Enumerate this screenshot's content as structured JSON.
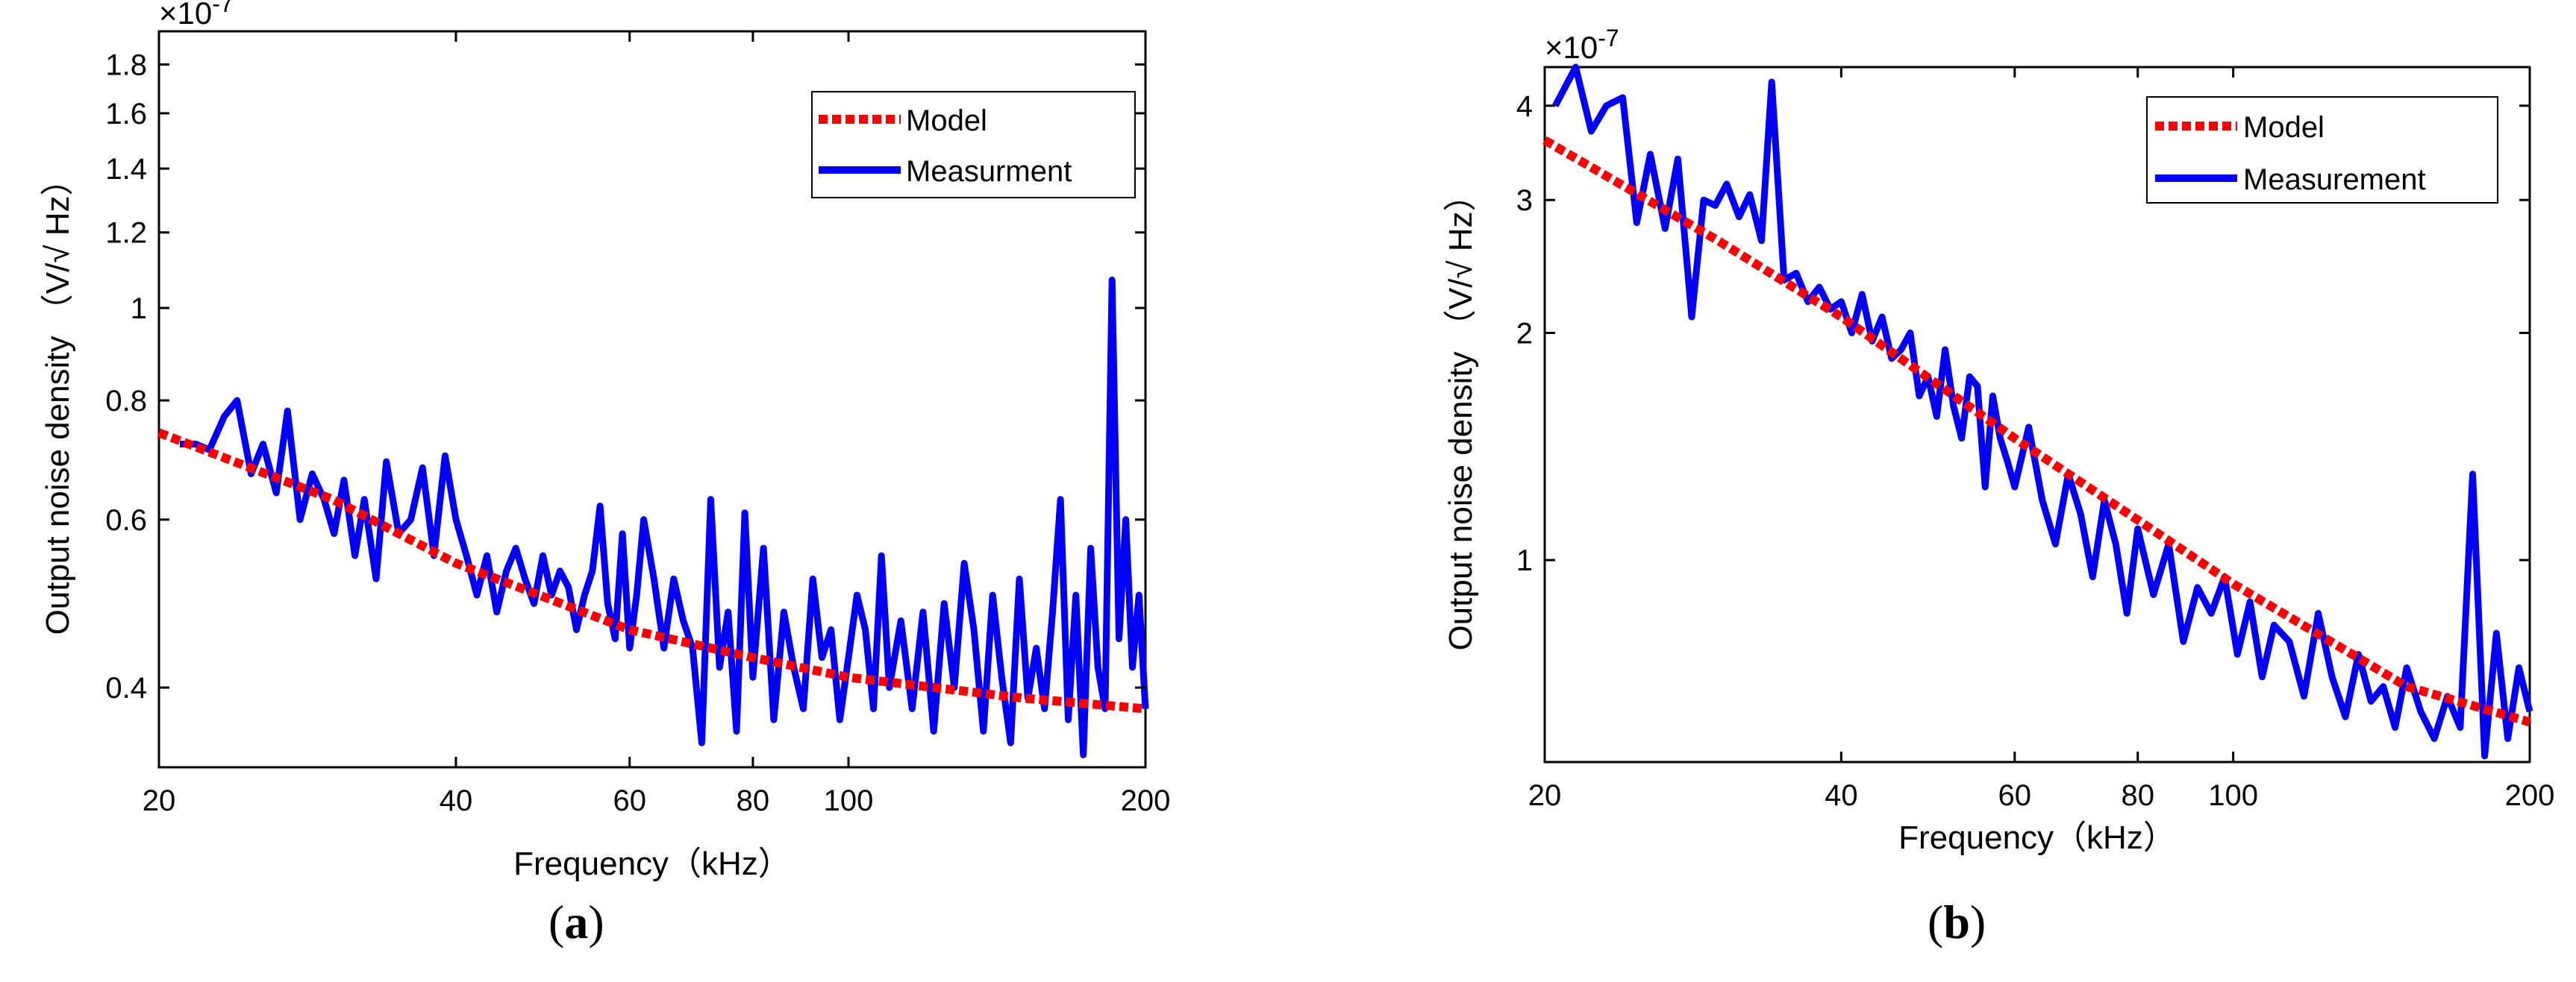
{
  "chart_data": [
    {
      "panel": "a",
      "type": "line",
      "xscale": "log",
      "yscale": "log",
      "xlim": [
        20,
        200
      ],
      "ylim": [
        3.3e-08,
        1.95e-07
      ],
      "xlabel": "Frequency（kHz）",
      "ylabel": "Output noise density （V/√ Hz）",
      "y_multiplier_label": "×10",
      "y_multiplier_exp": "-7",
      "xticks": [
        20,
        40,
        60,
        80,
        100,
        200
      ],
      "xtick_labels": [
        "20",
        "40",
        "60",
        "80",
        "100",
        "200"
      ],
      "yticks": [
        0.4,
        0.6,
        0.8,
        1,
        1.2,
        1.4,
        1.6,
        1.8
      ],
      "ytick_labels": [
        "0.4",
        "0.6",
        "0.8",
        "1",
        "1.2",
        "1.4",
        "1.6",
        "1.8"
      ],
      "legend_position": "top-right",
      "series": [
        {
          "name": "Model",
          "style": "dotted",
          "color": "#ff0000",
          "x": [
            20,
            30,
            40,
            60,
            80,
            100,
            150,
            200
          ],
          "y": [
            0.74,
            0.63,
            0.54,
            0.46,
            0.43,
            0.41,
            0.39,
            0.38
          ]
        },
        {
          "name": "Measurment",
          "style": "solid",
          "color": "#0000ff",
          "x": [
            21,
            21.8,
            22.5,
            23.3,
            24,
            24.8,
            25.5,
            26.3,
            27,
            27.8,
            28.6,
            29.4,
            30.1,
            30.8,
            31.6,
            32.3,
            33.2,
            34.0,
            35.0,
            36.0,
            37.0,
            38.0,
            39.0,
            40.0,
            41.0,
            42.0,
            43.0,
            44.0,
            45.0,
            46.0,
            47.0,
            48.0,
            49.0,
            50.0,
            51.0,
            52.0,
            53.0,
            54.0,
            55.0,
            56.0,
            57.0,
            58.0,
            59.0,
            60.0,
            61.0,
            62.0,
            63.5,
            65.0,
            66.5,
            68.0,
            69.5,
            71.0,
            72.5,
            74.0,
            75.5,
            77.0,
            78.5,
            80.0,
            82.0,
            84.0,
            86.0,
            88.0,
            90.0,
            92.0,
            94.0,
            96.0,
            98.0,
            100.0,
            102.0,
            104.0,
            106.0,
            108.0,
            110.0,
            113.0,
            116.0,
            119.0,
            122.0,
            125.0,
            128.0,
            131.0,
            134.0,
            137.0,
            140.0,
            143.0,
            146.0,
            149.0,
            152.0,
            155.0,
            158.0,
            161.0,
            164.0,
            167.0,
            170.0,
            173.0,
            176.0,
            179.0,
            182.0,
            185.0,
            188.0,
            191.0,
            194.0,
            197.0,
            200.0
          ],
          "y": [
            0.72,
            0.72,
            0.71,
            0.77,
            0.8,
            0.67,
            0.72,
            0.64,
            0.78,
            0.6,
            0.67,
            0.63,
            0.58,
            0.66,
            0.55,
            0.63,
            0.52,
            0.69,
            0.58,
            0.6,
            0.68,
            0.55,
            0.7,
            0.6,
            0.55,
            0.5,
            0.55,
            0.48,
            0.53,
            0.56,
            0.52,
            0.49,
            0.55,
            0.5,
            0.53,
            0.51,
            0.46,
            0.5,
            0.53,
            0.62,
            0.49,
            0.45,
            0.58,
            0.44,
            0.5,
            0.6,
            0.52,
            0.44,
            0.52,
            0.47,
            0.44,
            0.35,
            0.63,
            0.42,
            0.48,
            0.36,
            0.61,
            0.41,
            0.56,
            0.37,
            0.48,
            0.42,
            0.38,
            0.52,
            0.43,
            0.46,
            0.37,
            0.43,
            0.5,
            0.46,
            0.38,
            0.55,
            0.4,
            0.47,
            0.38,
            0.48,
            0.36,
            0.49,
            0.4,
            0.54,
            0.46,
            0.36,
            0.5,
            0.41,
            0.35,
            0.52,
            0.39,
            0.44,
            0.38,
            0.48,
            0.63,
            0.37,
            0.5,
            0.34,
            0.56,
            0.42,
            0.38,
            1.07,
            0.45,
            0.6,
            0.42,
            0.5,
            0.38
          ]
        }
      ]
    },
    {
      "panel": "b",
      "type": "line",
      "xscale": "log",
      "yscale": "log",
      "xlim": [
        20,
        200
      ],
      "ylim": [
        5.4e-08,
        4.5e-07
      ],
      "xlabel": "Frequency（kHz）",
      "ylabel": "Output noise density （V/√ Hz）",
      "y_multiplier_label": "×10",
      "y_multiplier_exp": "-7",
      "xticks": [
        20,
        40,
        60,
        80,
        100,
        200
      ],
      "xtick_labels": [
        "20",
        "40",
        "60",
        "80",
        "100",
        "200"
      ],
      "yticks": [
        1,
        2,
        3,
        4
      ],
      "ytick_labels": [
        "1",
        "2",
        "3",
        "4"
      ],
      "legend_position": "top-right",
      "series": [
        {
          "name": "Model",
          "style": "dotted",
          "color": "#ff0000",
          "x": [
            20,
            30,
            40,
            60,
            80,
            100,
            150,
            200
          ],
          "y": [
            3.6,
            2.65,
            2.1,
            1.45,
            1.13,
            0.93,
            0.68,
            0.61
          ]
        },
        {
          "name": "Measurement",
          "style": "solid",
          "color": "#0000ff",
          "x": [
            20.5,
            21.5,
            22.3,
            23.1,
            24.0,
            24.8,
            25.6,
            26.5,
            27.3,
            28.2,
            29.0,
            29.8,
            30.6,
            31.5,
            32.3,
            33.2,
            34.0,
            35.0,
            36.0,
            37.0,
            38.0,
            39.0,
            40.0,
            41.0,
            42.0,
            43.0,
            44.0,
            45.0,
            46.0,
            47.0,
            48.0,
            49.0,
            50.0,
            51.0,
            52.0,
            53.0,
            54.0,
            55.0,
            56.0,
            57.0,
            58.0,
            59.0,
            60.0,
            62.0,
            64.0,
            66.0,
            68.0,
            70.0,
            72.0,
            74.0,
            76.0,
            78.0,
            80.0,
            83.0,
            86.0,
            89.0,
            92.0,
            95.0,
            98.0,
            101.0,
            104.0,
            107.0,
            110.0,
            114.0,
            118.0,
            122.0,
            126.0,
            130.0,
            134.0,
            138.0,
            142.0,
            146.0,
            150.0,
            155.0,
            160.0,
            165.0,
            170.0,
            175.0,
            180.0,
            185.0,
            190.0,
            195.0,
            200.0
          ],
          "y": [
            4.0,
            4.5,
            3.7,
            4.0,
            4.1,
            2.8,
            3.45,
            2.75,
            3.4,
            2.1,
            3.0,
            2.95,
            3.15,
            2.85,
            3.05,
            2.65,
            4.3,
            2.35,
            2.4,
            2.2,
            2.3,
            2.15,
            2.2,
            2.0,
            2.25,
            1.95,
            2.1,
            1.85,
            1.9,
            2.0,
            1.65,
            1.75,
            1.55,
            1.9,
            1.6,
            1.45,
            1.75,
            1.7,
            1.25,
            1.65,
            1.45,
            1.35,
            1.25,
            1.5,
            1.2,
            1.05,
            1.3,
            1.15,
            0.95,
            1.2,
            1.05,
            0.85,
            1.1,
            0.9,
            1.05,
            0.78,
            0.92,
            0.85,
            0.95,
            0.75,
            0.88,
            0.7,
            0.82,
            0.78,
            0.66,
            0.85,
            0.7,
            0.62,
            0.75,
            0.65,
            0.68,
            0.6,
            0.72,
            0.63,
            0.58,
            0.66,
            0.6,
            1.3,
            0.55,
            0.8,
            0.58,
            0.72,
            0.63
          ]
        }
      ]
    }
  ],
  "captions": [
    "a",
    "b"
  ]
}
